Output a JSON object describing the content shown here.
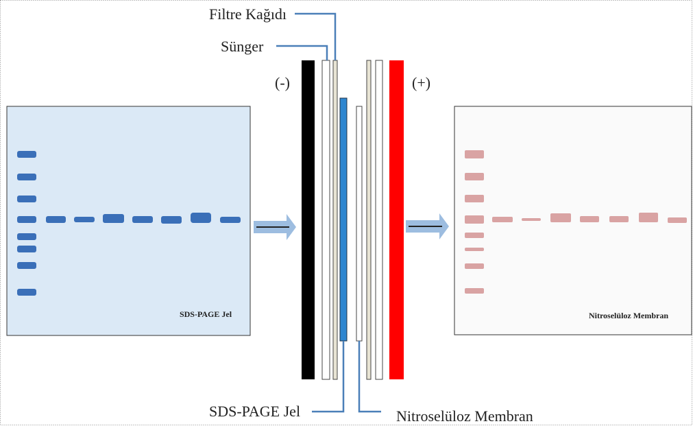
{
  "labels": {
    "filter_paper": "Filtre Kağıdı",
    "sponge": "Sünger",
    "cathode": "(-)",
    "anode": "(+)",
    "gel_callout": "SDS-PAGE Jel",
    "membrane_callout": "Nitroselüloz Membran"
  },
  "gel_panel": {
    "label": "SDS-PAGE Jel"
  },
  "membrane_panel": {
    "label": "Nitroselüloz Membran"
  }
}
